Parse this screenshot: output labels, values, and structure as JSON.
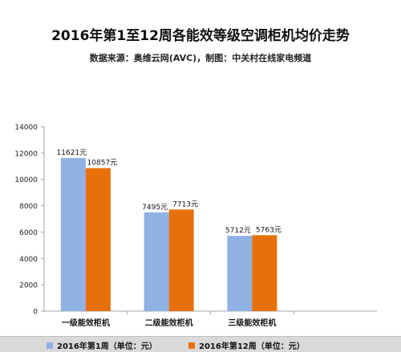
{
  "title": "2016年第1至12周各能效等级空调柜机均价走势",
  "subtitle": "数据来源：奥维云网(AVC)，制图：中关村在线家电频道",
  "colors": {
    "series1": "#8fb1e3",
    "series2": "#e8700a",
    "axis": "#a6a6a6"
  },
  "chart_data": {
    "type": "bar",
    "title": "2016年第1至12周各能效等级空调柜机均价走势",
    "subtitle": "数据来源：奥维云网(AVC)，制图：中关村在线家电频道",
    "categories": [
      "一级能效柜机",
      "二级能效柜机",
      "三级能效柜机"
    ],
    "series": [
      {
        "name": "2016年第1周（单位：元）",
        "values": [
          11621,
          7495,
          5712
        ],
        "labels": [
          "11621元",
          "7495元",
          "5712元"
        ]
      },
      {
        "name": "2016年第12周（单位：元）",
        "values": [
          10857,
          7713,
          5763
        ],
        "labels": [
          "10857元",
          "7713元",
          "5763元"
        ]
      }
    ],
    "ylim": [
      0,
      14000
    ],
    "yticks": [
      0,
      2000,
      4000,
      6000,
      8000,
      10000,
      12000,
      14000
    ],
    "xlabel": "",
    "ylabel": "",
    "grid": false,
    "legend_position": "bottom"
  }
}
